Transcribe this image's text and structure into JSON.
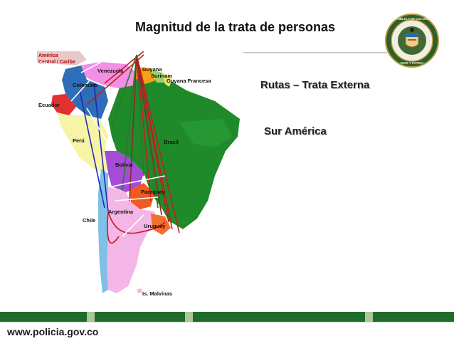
{
  "slide": {
    "title": "Magnitud de la trata de personas",
    "subtitle_routes": "Rutas – Trata Externa",
    "subtitle_region": "Sur América"
  },
  "map": {
    "labels": {
      "america_central": "América",
      "central_caribe": "Central / Caribe",
      "venezuela": "Venezuela",
      "guyana": "Guyana",
      "surinam": "Surinam",
      "guyana_francesa": "Guyana Francesa",
      "colombia": "Colombia",
      "ecuador": "Ecuador",
      "peru": "Perú",
      "brasil": "Brasil",
      "bolivia": "Bolivia",
      "paraguay": "Paraguay",
      "argentina": "Argentina",
      "chile": "Chile",
      "uruguay": "Uruguay",
      "malvinas": "Is. Malvinas"
    }
  },
  "seal": {
    "text_top": "REPÚBLICA DE COLOMBIA",
    "text_bottom": "DIOS Y PATRIA"
  },
  "footer": {
    "website": "www.policia.gov.co"
  }
}
